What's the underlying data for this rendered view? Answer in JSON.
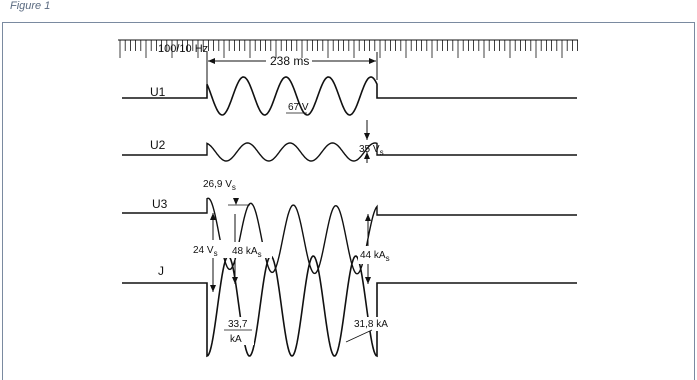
{
  "figure": {
    "caption": "Figure 1"
  },
  "timebase": {
    "label": "100/10 Hz",
    "duration": "238 ms"
  },
  "channels": [
    {
      "label": "U1"
    },
    {
      "label": "U2"
    },
    {
      "label": "U3"
    },
    {
      "label": "J"
    }
  ],
  "annotations": {
    "u1_peak": "67 V",
    "u2_peak": "35 V",
    "u2_peak_sub": "s",
    "u3_peak": "26,9 V",
    "u3_peak_sub": "s",
    "u3_span": "24 V",
    "u3_span_sub": "s",
    "j_peak_left": "48 kA",
    "j_peak_left_sub": "s",
    "j_peak_right": "44 kA",
    "j_peak_right_sub": "s",
    "j_rms_left": "33,7",
    "j_rms_left_unit": "kA",
    "j_rms_right": "31,8 kA"
  },
  "colors": {
    "trace": "#111111",
    "frame": "#7a8aa0",
    "caption": "#5a6a80"
  }
}
